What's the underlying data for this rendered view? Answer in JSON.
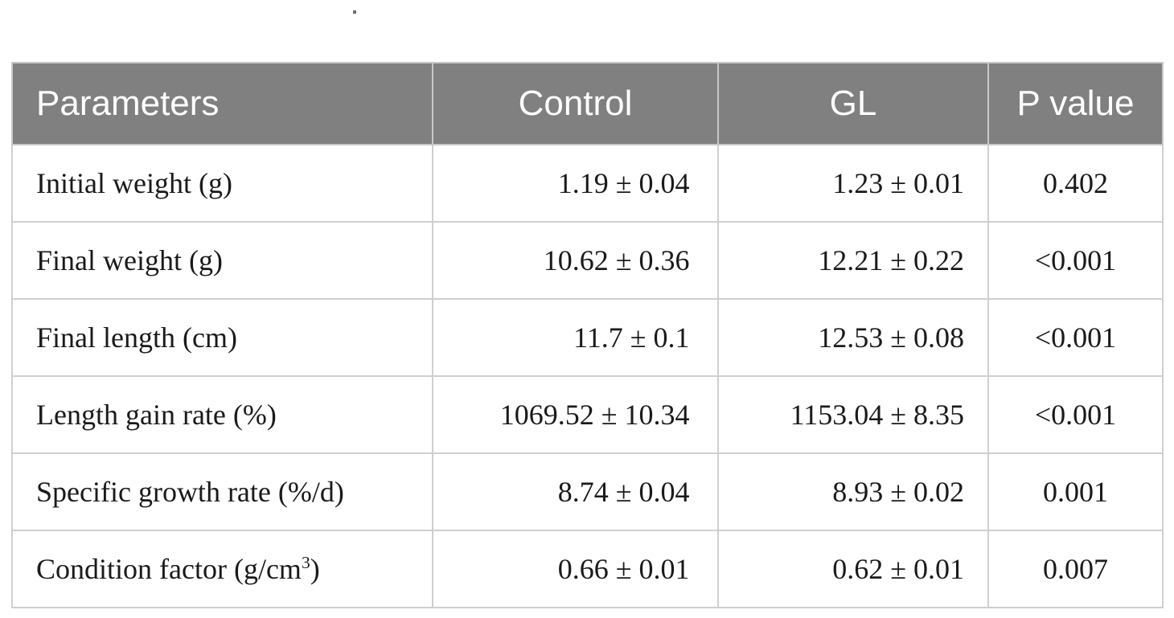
{
  "table": {
    "headers": [
      "Parameters",
      "Control",
      "GL",
      "P value"
    ],
    "rows": [
      {
        "parameter": "Initial weight (g)",
        "control": "1.19 ± 0.04",
        "gl": "1.23 ± 0.01",
        "p_value": "0.402"
      },
      {
        "parameter": "Final weight (g)",
        "control": "10.62 ± 0.36",
        "gl": "12.21 ± 0.22",
        "p_value": "<0.001"
      },
      {
        "parameter": "Final length (cm)",
        "control": "11.7 ± 0.1",
        "gl": "12.53 ± 0.08",
        "p_value": "<0.001"
      },
      {
        "parameter": "Length gain rate (%)",
        "control": "1069.52 ± 10.34",
        "gl": "1153.04 ± 8.35",
        "p_value": "<0.001"
      },
      {
        "parameter": "Specific growth rate (%/d)",
        "control": "8.74 ± 0.04",
        "gl": "8.93 ± 0.02",
        "p_value": "0.001"
      },
      {
        "parameter": "Condition factor (g/cm",
        "parameter_sup": "3",
        "parameter_suffix": ")",
        "control": "0.66 ± 0.01",
        "gl": "0.62 ± 0.01",
        "p_value": "0.007"
      }
    ]
  }
}
